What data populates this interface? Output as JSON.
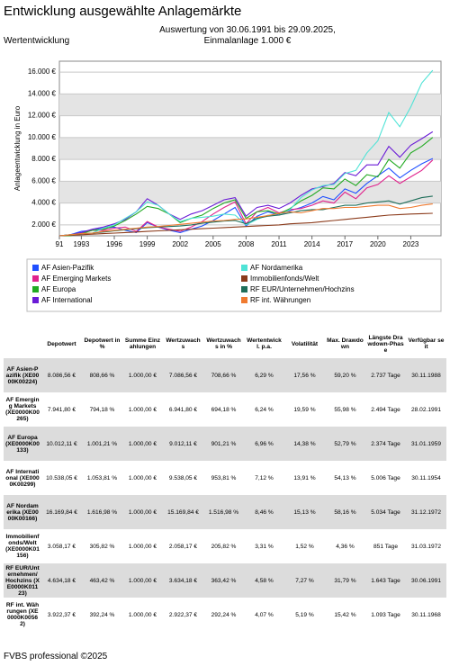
{
  "header": {
    "title": "Entwicklung ausgewählte Anlagemärkte",
    "section": "Wertentwicklung",
    "subtitle": [
      "Auswertung von 30.06.1991 bis 29.09.2025,",
      "Einmalanlage 1.000 €"
    ]
  },
  "chart_data": {
    "type": "line",
    "ylabel": "Anlageentwicklung in Euro",
    "x": [
      1991,
      1992,
      1993,
      1994,
      1995,
      1996,
      1997,
      1998,
      1999,
      2000,
      2001,
      2002,
      2003,
      2004,
      2005,
      2006,
      2007,
      2008,
      2009,
      2010,
      2011,
      2012,
      2013,
      2014,
      2015,
      2016,
      2017,
      2018,
      2019,
      2020,
      2021,
      2022,
      2023,
      2024,
      2025
    ],
    "xlim": [
      1991,
      2025.75
    ],
    "xticks": [
      {
        "value": 1991,
        "label": "91"
      },
      1993,
      1996,
      1999,
      2002,
      2005,
      2008,
      2011,
      2014,
      2017,
      2020,
      2023
    ],
    "ylim": [
      1000,
      17000
    ],
    "yticks": [
      {
        "value": 2000,
        "label": "2.000 €"
      },
      {
        "value": 4000,
        "label": "4.000 €"
      },
      {
        "value": 6000,
        "label": "6.000 €"
      },
      {
        "value": 8000,
        "label": "8.000 €"
      },
      {
        "value": 10000,
        "label": "10.000 €"
      },
      {
        "value": 12000,
        "label": "12.000 €"
      },
      {
        "value": 14000,
        "label": "14.000 €"
      },
      {
        "value": 16000,
        "label": "16.000 €"
      }
    ],
    "grid": true,
    "series": [
      {
        "name": "AF Asien-Pazifik",
        "color": "#1f4fff",
        "values": [
          1000,
          1100,
          1400,
          1500,
          1700,
          1800,
          1500,
          1300,
          2200,
          1800,
          1500,
          1300,
          1600,
          1900,
          2400,
          3000,
          3600,
          1900,
          2800,
          3200,
          2900,
          3300,
          3600,
          4000,
          4600,
          4300,
          5300,
          4900,
          5800,
          6500,
          7200,
          6300,
          7000,
          7600,
          8087
        ]
      },
      {
        "name": "AF Emerging Markets",
        "color": "#e0228c",
        "values": [
          1000,
          1050,
          1300,
          1500,
          1500,
          1700,
          1800,
          1400,
          2300,
          1800,
          1600,
          1400,
          1800,
          2300,
          3000,
          3600,
          4100,
          2100,
          3200,
          3600,
          3100,
          3400,
          3500,
          3800,
          4200,
          4000,
          5000,
          4400,
          5400,
          5700,
          6500,
          5800,
          6400,
          7000,
          7942
        ]
      },
      {
        "name": "AF Europa",
        "color": "#22aa22",
        "values": [
          1000,
          1000,
          1200,
          1500,
          1600,
          1900,
          2400,
          3000,
          3700,
          3500,
          3000,
          2200,
          2600,
          2900,
          3500,
          4000,
          4300,
          2600,
          3200,
          3300,
          3000,
          3500,
          4200,
          4700,
          5400,
          5300,
          6200,
          5600,
          6600,
          6400,
          8000,
          7200,
          8600,
          9200,
          10012
        ]
      },
      {
        "name": "AF International",
        "color": "#6a1bd6",
        "values": [
          1000,
          1100,
          1300,
          1600,
          1800,
          2100,
          2500,
          3200,
          4400,
          3800,
          3000,
          2500,
          3000,
          3300,
          3800,
          4300,
          4500,
          2800,
          3600,
          3800,
          3500,
          4000,
          4700,
          5300,
          5500,
          5800,
          6800,
          6500,
          7500,
          7500,
          9200,
          8200,
          9300,
          9900,
          10538
        ]
      },
      {
        "name": "AF Nordamerika",
        "color": "#4fe3d6",
        "values": [
          1000,
          1100,
          1200,
          1250,
          1700,
          2000,
          2600,
          3200,
          4100,
          3800,
          3000,
          2300,
          2600,
          2700,
          2800,
          3000,
          2900,
          2000,
          2500,
          2900,
          2900,
          3400,
          4500,
          5200,
          5600,
          5700,
          6700,
          7000,
          8600,
          9700,
          12300,
          11000,
          12800,
          15000,
          16169
        ]
      },
      {
        "name": "Immobilienfonds/Welt",
        "color": "#8b3a1a",
        "values": [
          1000,
          1050,
          1100,
          1150,
          1200,
          1250,
          1300,
          1350,
          1400,
          1450,
          1500,
          1550,
          1600,
          1650,
          1700,
          1750,
          1800,
          1850,
          1900,
          1950,
          2000,
          2100,
          2150,
          2200,
          2300,
          2400,
          2500,
          2600,
          2700,
          2800,
          2900,
          2950,
          3000,
          3030,
          3058
        ]
      },
      {
        "name": "RF EUR/Unternehmen/Hochzins",
        "color": "#1f6e5a",
        "values": [
          1000,
          1100,
          1200,
          1250,
          1350,
          1450,
          1550,
          1650,
          1750,
          1800,
          1850,
          1900,
          2000,
          2150,
          2250,
          2350,
          2400,
          2100,
          2600,
          2800,
          2900,
          3100,
          3300,
          3400,
          3400,
          3600,
          3800,
          3800,
          4000,
          4100,
          4200,
          3900,
          4200,
          4500,
          4634
        ]
      },
      {
        "name": "RF int. Währungen",
        "color": "#f07a30",
        "values": [
          1000,
          1100,
          1200,
          1250,
          1400,
          1500,
          1600,
          1700,
          1800,
          1850,
          1950,
          2050,
          2150,
          2250,
          2350,
          2400,
          2500,
          2550,
          2700,
          2850,
          3050,
          3200,
          3100,
          3300,
          3500,
          3500,
          3600,
          3600,
          3700,
          3800,
          3800,
          3500,
          3600,
          3800,
          3922
        ]
      }
    ]
  },
  "table": {
    "header": [
      "Depotwert",
      "Depotwert in %",
      "Summe Einzahlungen",
      "Wertzuwachs",
      "Wertzuwachs in %",
      "Wertentwickl. p.a.",
      "Volatilität",
      "Max. Drawdown",
      "Längste Drawdown-Phase",
      "Verfügbar seit"
    ],
    "rows": [
      [
        "AF Asien-Pazifik (XE0000K00224)",
        "8.086,56 €",
        "808,66 %",
        "1.000,00 €",
        "7.086,56 €",
        "708,66 %",
        "6,29 %",
        "17,56 %",
        "59,20 %",
        "2.737 Tage",
        "30.11.1988"
      ],
      [
        "AF Emerging Markets (XE0000K00265)",
        "7.941,80 €",
        "794,18 %",
        "1.000,00 €",
        "6.941,80 €",
        "694,18 %",
        "6,24 %",
        "19,59 %",
        "55,98 %",
        "2.494 Tage",
        "28.02.1991"
      ],
      [
        "AF Europa (XE0000K00133)",
        "10.012,11 €",
        "1.001,21 %",
        "1.000,00 €",
        "9.012,11 €",
        "901,21 %",
        "6,96 %",
        "14,38 %",
        "52,79 %",
        "2.374 Tage",
        "31.01.1959"
      ],
      [
        "AF International (XE0000K00299)",
        "10.538,05 €",
        "1.053,81 %",
        "1.000,00 €",
        "9.538,05 €",
        "953,81 %",
        "7,12 %",
        "13,91 %",
        "54,13 %",
        "5.006 Tage",
        "30.11.1954"
      ],
      [
        "AF Nordamerika (XE0000K00166)",
        "16.169,84 €",
        "1.616,98 %",
        "1.000,00 €",
        "15.169,84 €",
        "1.516,98 %",
        "8,46 %",
        "15,13 %",
        "58,16 %",
        "5.034 Tage",
        "31.12.1972"
      ],
      [
        "Immobilienfonds/Welt (XE0000K01156)",
        "3.058,17 €",
        "305,82 %",
        "1.000,00 €",
        "2.058,17 €",
        "205,82 %",
        "3,31 %",
        "1,52 %",
        "4,36 %",
        "851 Tage",
        "31.03.1972"
      ],
      [
        "RF EUR/Unternehmen/Hochzins (XE0000K01123)",
        "4.634,18 €",
        "463,42 %",
        "1.000,00 €",
        "3.634,18 €",
        "363,42 %",
        "4,58 %",
        "7,27 %",
        "31,79 %",
        "1.643 Tage",
        "30.06.1991"
      ],
      [
        "RF int. Währungen (XE0000K00562)",
        "3.922,37 €",
        "392,24 %",
        "1.000,00 €",
        "2.922,37 €",
        "292,24 %",
        "4,07 %",
        "5,19 %",
        "15,42 %",
        "1.093 Tage",
        "30.11.1968"
      ]
    ]
  },
  "footer": "FVBS professional ©2025"
}
